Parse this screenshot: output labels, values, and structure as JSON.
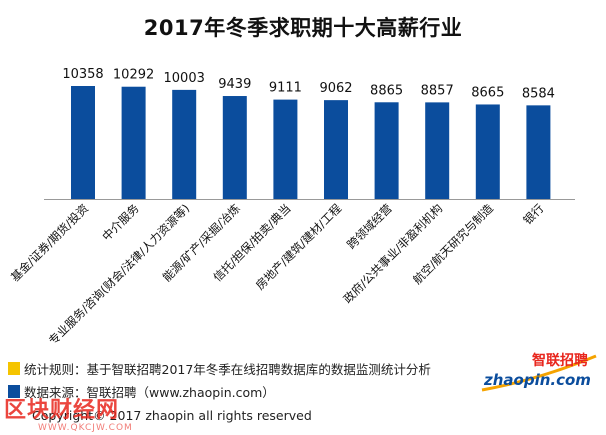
{
  "chart_data": {
    "type": "bar",
    "title": "2017年冬季求职期十大高薪行业",
    "categories": [
      "基金/证券/期货/投资",
      "中介服务",
      "专业服务/咨询(财会/法律/人力资源等)",
      "能源/矿产/采掘/冶炼",
      "信托/担保/拍卖/典当",
      "房地产/建筑/建材/工程",
      "跨领域经营",
      "政府/公共事业/非盈利机构",
      "航空/航天研究与制造",
      "银行"
    ],
    "values": [
      10358,
      10292,
      10003,
      9439,
      9111,
      9062,
      8865,
      8857,
      8665,
      8584
    ],
    "ylim": [
      0,
      10358
    ],
    "bar_color": "#0b4d9d",
    "grid": false,
    "data_labels": true
  },
  "legend": [
    {
      "text": "统计规则：基于智联招聘2017年冬季在线招聘数据库的数据监测统计分析",
      "color": "#f5c400"
    },
    {
      "text": "数据来源：智联招聘（www.zhaopin.com）",
      "color": "#0b4d9d"
    }
  ],
  "logo": {
    "text_cn": "智联招聘",
    "text_en": "zhaopin.com"
  },
  "copyright": "Copyright© 2017 zhaopin all rights reserved",
  "watermark": {
    "text": "区块财经网",
    "url": "WWW.QKCJW.COM"
  }
}
